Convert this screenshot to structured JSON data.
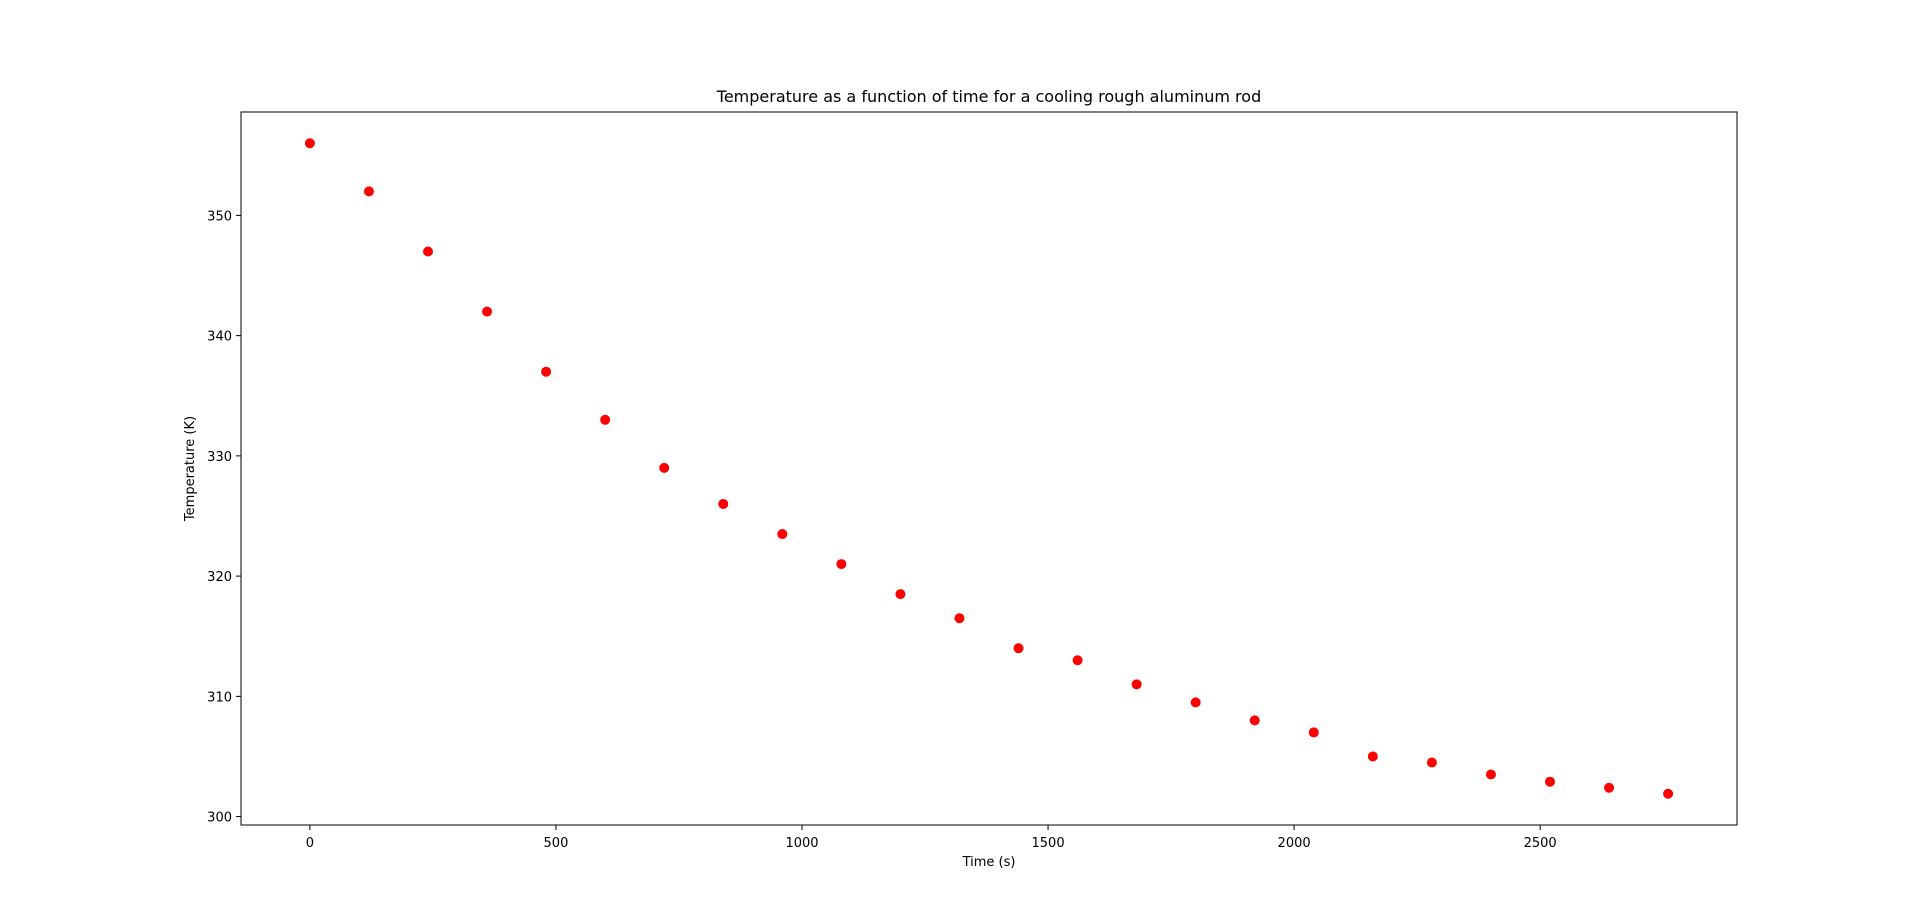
{
  "chart_data": {
    "type": "scatter",
    "title": "Temperature as a function of time for a cooling rough aluminum rod",
    "xlabel": "Time (s)",
    "ylabel": "Temperature (K)",
    "xlim": [
      -140,
      2900
    ],
    "ylim": [
      299.3,
      358.6
    ],
    "xticks": [
      0,
      500,
      1000,
      1500,
      2000,
      2500
    ],
    "yticks": [
      300,
      310,
      320,
      330,
      340,
      350
    ],
    "grid": false,
    "legend": "none",
    "marker_color": "#ff0000",
    "series": [
      {
        "x": [
          0,
          120,
          240,
          360,
          480,
          600,
          720,
          840,
          960,
          1080,
          1200,
          1320,
          1440,
          1560,
          1680,
          1800,
          1920,
          2040,
          2160,
          2280,
          2400,
          2520,
          2640,
          2760
        ],
        "y": [
          356,
          352,
          347,
          342,
          337,
          333,
          329,
          326,
          323.5,
          321,
          318.5,
          316.5,
          314,
          313,
          311,
          309.5,
          308,
          307,
          305,
          304.5,
          303.5,
          302.9,
          302.4,
          301.9
        ]
      }
    ]
  }
}
